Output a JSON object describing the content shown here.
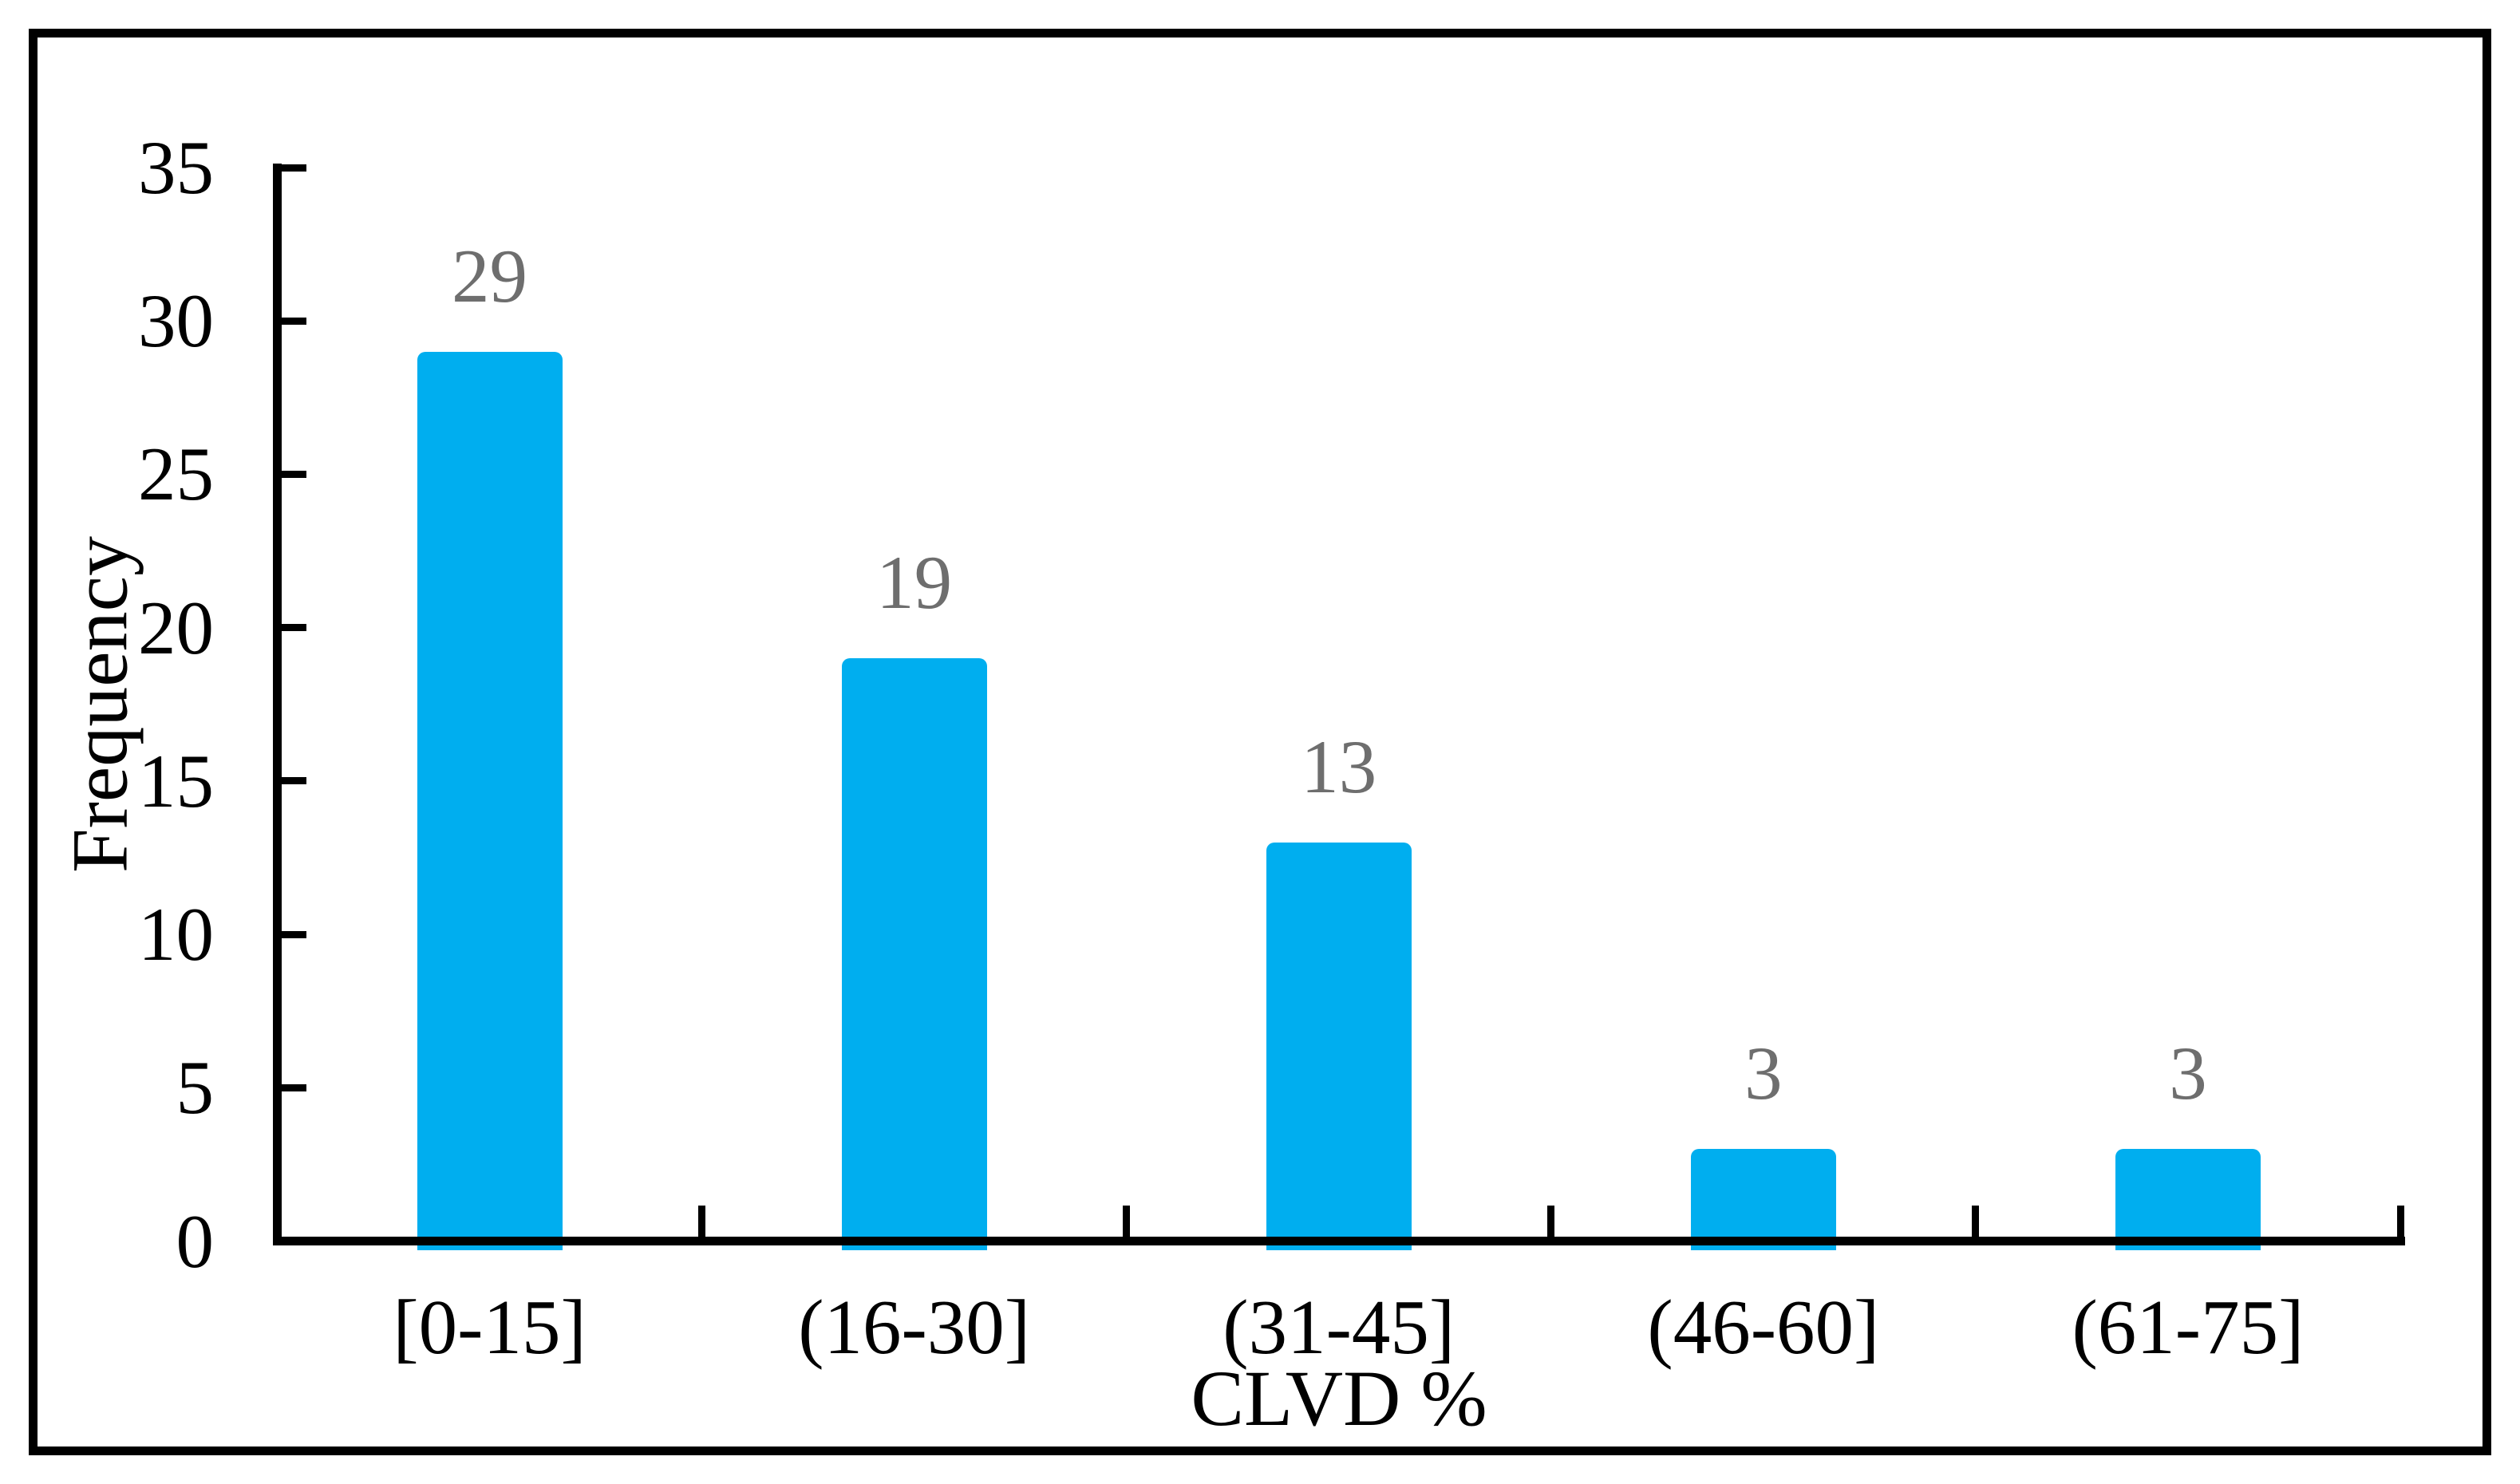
{
  "chart_data": {
    "type": "bar",
    "title": "",
    "categories": [
      "[0-15]",
      "(16-30]",
      "(31-45]",
      "(46-60]",
      "(61-75]"
    ],
    "values": [
      29,
      19,
      13,
      3,
      3
    ],
    "data_labels": [
      "29",
      "19",
      "13",
      "3",
      "3"
    ],
    "xlabel": "CLVD %",
    "ylabel": "Frequency",
    "ylim": [
      0,
      35
    ],
    "ytick_interval": 5,
    "yticks": [
      0,
      5,
      10,
      15,
      20,
      25,
      30,
      35
    ],
    "grid": false,
    "legend": false,
    "bar_color": "#00AEEF",
    "data_label_color": "#6E6E6E",
    "axis_color": "#000000",
    "text_color": "#000000",
    "background_color": "#FFFFFF"
  }
}
